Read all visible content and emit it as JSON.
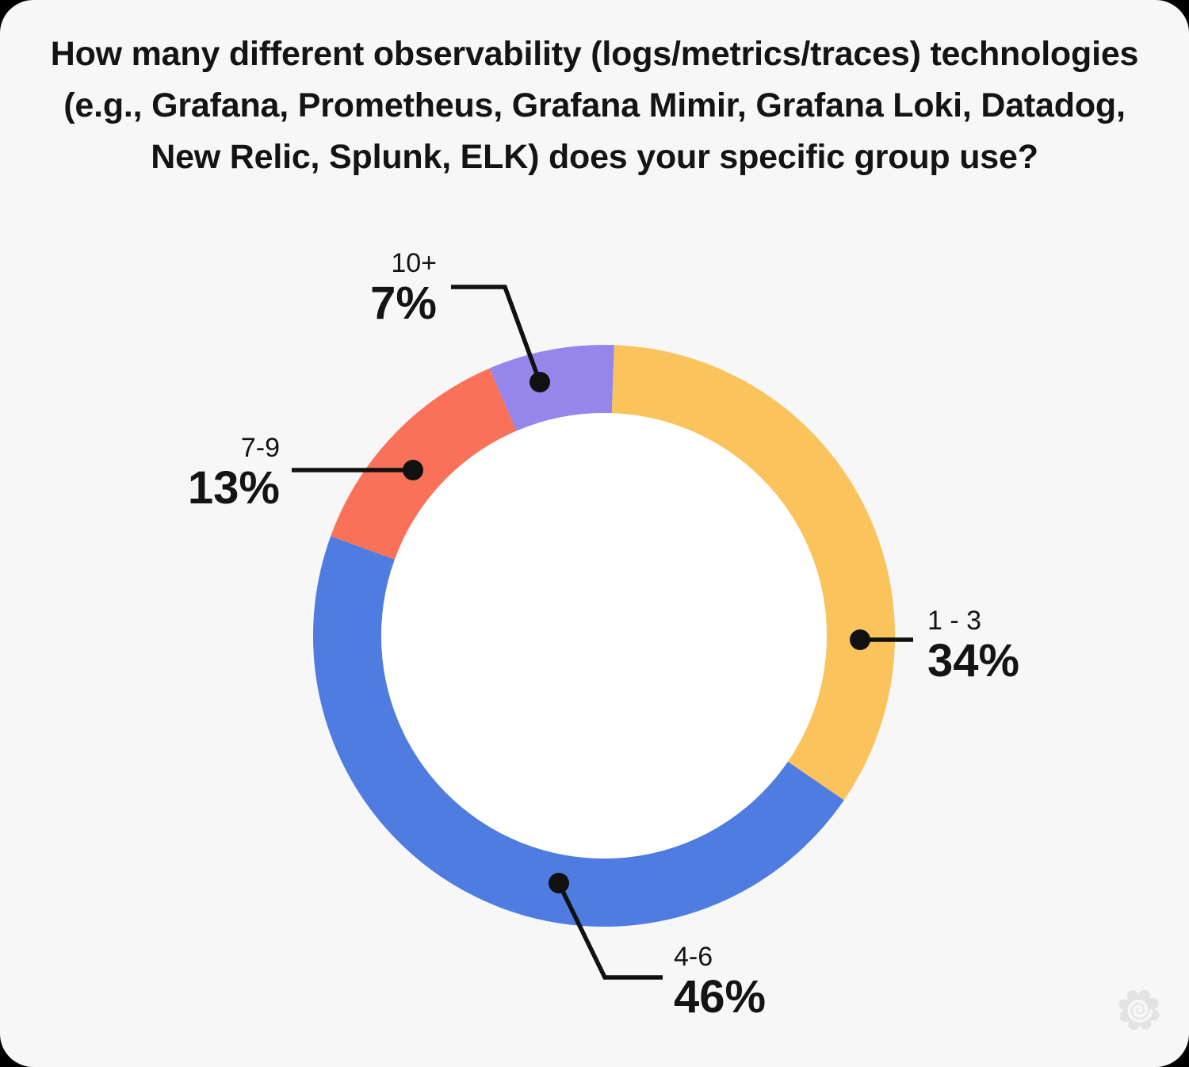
{
  "page": {
    "background_outside": "#000000",
    "card_background": "#F7F7F8",
    "text_color": "#141414"
  },
  "header": {
    "title_lines": [
      "How many different observability (logs/metrics/traces) technologies",
      "(e.g., Grafana, Prometheus, Grafana Mimir, Grafana Loki, Datadog,",
      "New Relic, Splunk, ELK) does your specific group use?"
    ]
  },
  "chart_data": {
    "type": "pie",
    "variant": "donut",
    "title": "How many different observability (logs/metrics/traces) technologies (e.g., Grafana, Prometheus, Grafana Mimir, Grafana Loki, Datadog, New Relic, Splunk, ELK) does your specific group use?",
    "categories": [
      "1 - 3",
      "4-6",
      "7-9",
      "10+"
    ],
    "values": [
      34,
      46,
      13,
      7
    ],
    "value_labels": [
      "34%",
      "46%",
      "13%",
      "7%"
    ],
    "colors": [
      "#FAC35C",
      "#4E7CE1",
      "#FA715A",
      "#9686EB"
    ],
    "unit": "percent",
    "start_angle": "top",
    "direction": "clockwise",
    "hole_color": "#FFFFFF",
    "hole_ratio": 0.77,
    "callout_line_color": "#111111",
    "legend_position": "callout labels with leader lines around chart"
  },
  "watermark": {
    "name": "grafana-logo",
    "color": "#E3E3E5"
  }
}
